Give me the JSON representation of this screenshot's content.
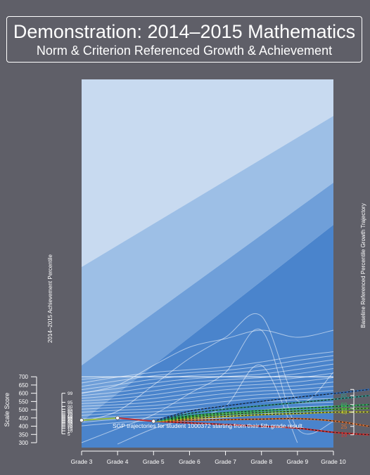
{
  "header": {
    "title": "Demonstration: 2014–2015 Mathematics",
    "subtitle": "Norm & Criterion Referenced Growth & Achievement"
  },
  "chart_data": {
    "type": "line",
    "title": "Demonstration: 2014–2015 Mathematics",
    "subtitle": "Norm & Criterion Referenced Growth & Achievement",
    "x_categories": [
      "Grade 3",
      "Grade 4",
      "Grade 5",
      "Grade 6",
      "Grade 7",
      "Grade 8",
      "Grade 9",
      "Grade 10"
    ],
    "left_axis": {
      "label": "Scale Score",
      "range": [
        300,
        700
      ],
      "ticks": [
        "300",
        "350",
        "400",
        "450",
        "500",
        "550",
        "600",
        "650",
        "700"
      ]
    },
    "percentile_axis": {
      "label": "2014–2015 Achievement Percentile",
      "ticks": [
        {
          "p": "5",
          "score": 354
        },
        {
          "p": "10",
          "score": 372
        },
        {
          "p": "15",
          "score": 386
        },
        {
          "p": "20",
          "score": 396
        },
        {
          "p": "25",
          "score": 405
        },
        {
          "p": "30",
          "score": 414
        },
        {
          "p": "35",
          "score": 421
        },
        {
          "p": "40",
          "score": 428
        },
        {
          "p": "45",
          "score": 435
        },
        {
          "p": "50",
          "score": 442
        },
        {
          "p": "55",
          "score": 449
        },
        {
          "p": "60",
          "score": 456
        },
        {
          "p": "65",
          "score": 463
        },
        {
          "p": "70",
          "score": 471
        },
        {
          "p": "75",
          "score": 480
        },
        {
          "p": "80",
          "score": 490
        },
        {
          "p": "85",
          "score": 503
        },
        {
          "p": "90",
          "score": 520
        },
        {
          "p": "95",
          "score": 545
        },
        {
          "p": "99",
          "score": 600
        }
      ]
    },
    "right_axis": {
      "label": "Baseline Referenced Percentile Growth Trajectory",
      "ticks": [
        {
          "p": "10",
          "score": 348,
          "color": "#e03030"
        },
        {
          "p": "25",
          "score": 399,
          "color": "#e07030"
        },
        {
          "p": "40",
          "score": 486,
          "color": "#b8c030"
        },
        {
          "p": "50",
          "score": 509,
          "color": "#58c040"
        },
        {
          "p": "60",
          "score": 531,
          "color": "#30b860"
        },
        {
          "p": "85",
          "score": 586,
          "color": "#309890"
        },
        {
          "p": "",
          "score": 623,
          "color": "#3070c0"
        }
      ]
    },
    "achievement_bands_color": [
      "#f0f4fa",
      "#c8daf0",
      "#9dbfe6",
      "#6f9fd9",
      "#4a84cc"
    ],
    "student_scores": [
      {
        "x": "Grade 3",
        "y": 436
      },
      {
        "x": "Grade 4",
        "y": 450
      },
      {
        "x": "Grade 5",
        "y": 430
      }
    ],
    "growth_trajectories": [
      {
        "percentile": "10",
        "color": "#e03030",
        "values": [
          430,
          420,
          410,
          400,
          388,
          363,
          348
        ]
      },
      {
        "percentile": "25",
        "color": "#e07030",
        "values": [
          430,
          436,
          440,
          443,
          446,
          432,
          399
        ]
      },
      {
        "percentile": "40",
        "color": "#b8c030",
        "values": [
          430,
          446,
          459,
          470,
          477,
          485,
          486
        ]
      },
      {
        "percentile": "50",
        "color": "#58c040",
        "values": [
          430,
          455,
          472,
          483,
          492,
          502,
          509
        ]
      },
      {
        "percentile": "60",
        "color": "#30b860",
        "values": [
          430,
          463,
          482,
          495,
          507,
          519,
          531
        ]
      },
      {
        "percentile": "85",
        "color": "#309890",
        "values": [
          430,
          477,
          503,
          524,
          543,
          563,
          586
        ]
      },
      {
        "percentile": "",
        "color": "#3070c0",
        "values": [
          430,
          491,
          523,
          551,
          576,
          598,
          623
        ]
      }
    ],
    "annotation": "SGP trajectories for student 1000372 starting from their 5th grade result."
  }
}
